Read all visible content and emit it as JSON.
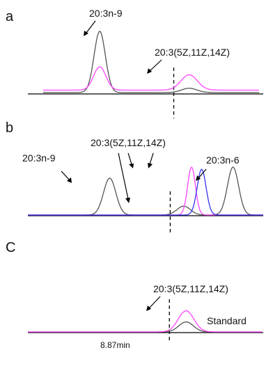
{
  "colors": {
    "black": "#555555",
    "magenta": "#ff44ff",
    "blue": "#3333ee",
    "axis": "#000000",
    "dashed": "#000000"
  },
  "chart_data": [
    {
      "panel": "a",
      "type": "line",
      "xlim": [
        7.6,
        9.7
      ],
      "marker_x": 8.87,
      "series": [
        {
          "color": "black",
          "peaks": [
            {
              "mu": 8.15,
              "sigma": 0.055,
              "h": 1.0
            },
            {
              "mu": 9.02,
              "sigma": 0.075,
              "h": 0.07
            }
          ],
          "baseline": 0.0
        },
        {
          "color": "magenta",
          "peaks": [
            {
              "mu": 8.15,
              "sigma": 0.06,
              "h": 0.38
            },
            {
              "mu": 9.02,
              "sigma": 0.08,
              "h": 0.25
            }
          ],
          "baseline": 0.04
        }
      ],
      "annotations": [
        {
          "text": "20:3n-9"
        },
        {
          "text": "20:3(5Z,11Z,14Z)"
        }
      ]
    },
    {
      "panel": "b",
      "type": "line",
      "xlim": [
        7.6,
        9.7
      ],
      "marker_x": 8.87,
      "series": [
        {
          "color": "black",
          "peaks": [
            {
              "mu": 8.33,
              "sigma": 0.055,
              "h": 0.5
            },
            {
              "mu": 8.99,
              "sigma": 0.06,
              "h": 0.12
            },
            {
              "mu": 9.43,
              "sigma": 0.05,
              "h": 0.65
            }
          ],
          "baseline": 0.0
        },
        {
          "color": "magenta",
          "peaks": [
            {
              "mu": 9.06,
              "sigma": 0.035,
              "h": 0.65
            }
          ],
          "baseline": 0.0
        },
        {
          "color": "blue",
          "peaks": [
            {
              "mu": 9.15,
              "sigma": 0.04,
              "h": 0.62
            }
          ],
          "baseline": 0.0
        }
      ],
      "annotations": [
        {
          "text": "20:3n-9"
        },
        {
          "text": "20:3(5Z,11Z,14Z)"
        },
        {
          "text": "20:3n-6"
        }
      ]
    },
    {
      "panel": "C",
      "type": "line",
      "xlim": [
        7.6,
        9.7
      ],
      "marker_x": 8.87,
      "series": [
        {
          "color": "black",
          "peaks": [
            {
              "mu": 9.02,
              "sigma": 0.065,
              "h": 0.09
            }
          ],
          "baseline": 0.0
        },
        {
          "color": "magenta",
          "peaks": [
            {
              "mu": 9.02,
              "sigma": 0.07,
              "h": 0.19
            }
          ],
          "baseline": 0.0
        }
      ],
      "annotations": [
        {
          "text": "20:3(5Z,11Z,14Z)"
        },
        {
          "text": "Standard"
        }
      ],
      "x_marker_label": "8.87min"
    }
  ]
}
